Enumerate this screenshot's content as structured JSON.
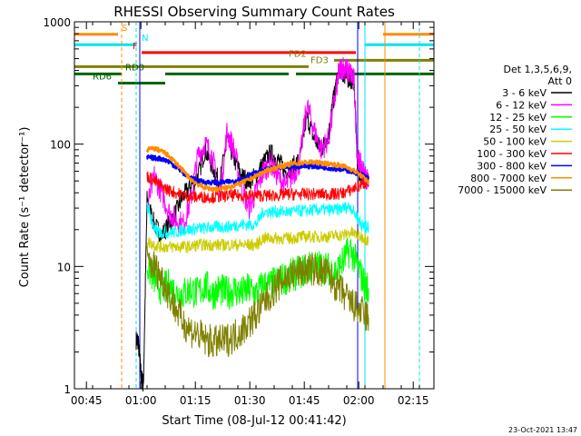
{
  "chart_data": {
    "type": "line",
    "title": "RHESSI Observing Summary Count Rates",
    "xlabel": "Start Time (08-Jul-12 00:41:42)",
    "ylabel": "Count Rate (s⁻¹ detector⁻¹)",
    "y_scale": "log",
    "ylim": [
      1,
      1000
    ],
    "x_unit": "minutes after 00:41:42",
    "xlim": [
      0,
      99
    ],
    "x_ticks": [
      {
        "label": "00:45",
        "x": 3.3
      },
      {
        "label": "01:00",
        "x": 18.3
      },
      {
        "label": "01:15",
        "x": 33.3
      },
      {
        "label": "01:30",
        "x": 48.3
      },
      {
        "label": "01:45",
        "x": 63.3
      },
      {
        "label": "02:00",
        "x": 78.3
      },
      {
        "label": "02:15",
        "x": 93.3
      }
    ],
    "y_ticks": [
      {
        "label": "1",
        "value": 1
      },
      {
        "label": "10",
        "value": 10
      },
      {
        "label": "100",
        "value": 100
      },
      {
        "label": "1000",
        "value": 1000
      }
    ],
    "legend": {
      "header": [
        "Det 1,3,5,6,9,",
        "Att 0"
      ],
      "placement": "right"
    },
    "series": [
      {
        "name": "3 - 6 keV",
        "color": "#000000",
        "x": [
          17,
          17.5,
          18.5,
          19,
          20,
          22,
          24,
          26,
          28,
          30,
          32,
          34,
          36,
          38,
          40,
          42,
          44,
          46,
          48,
          50,
          52,
          54,
          56,
          58,
          60,
          62,
          64,
          66,
          68,
          70,
          71,
          72,
          73,
          74,
          75,
          76,
          77,
          78,
          79,
          80,
          81
        ],
        "y": [
          2.5,
          2.5,
          1.2,
          1.1,
          35,
          22,
          18,
          22,
          28,
          38,
          45,
          55,
          90,
          65,
          48,
          110,
          75,
          55,
          50,
          55,
          70,
          85,
          75,
          60,
          65,
          75,
          170,
          110,
          90,
          120,
          200,
          300,
          420,
          380,
          350,
          340,
          330,
          60,
          55,
          55,
          50
        ]
      },
      {
        "name": "6 - 12 keV",
        "color": "#ff00ff",
        "x": [
          20,
          22,
          24,
          26,
          28,
          30,
          32,
          34,
          36,
          38,
          40,
          42,
          44,
          46,
          48,
          50,
          52,
          54,
          56,
          58,
          60,
          62,
          64,
          66,
          68,
          70,
          72,
          73,
          74,
          75,
          76,
          77,
          78,
          79,
          80,
          81
        ],
        "y": [
          30,
          55,
          40,
          28,
          24,
          22,
          35,
          80,
          100,
          80,
          35,
          125,
          90,
          45,
          30,
          40,
          60,
          70,
          55,
          45,
          55,
          70,
          210,
          130,
          90,
          110,
          270,
          400,
          430,
          400,
          380,
          330,
          75,
          65,
          55,
          50
        ]
      },
      {
        "name": "12 - 25 keV",
        "color": "#00ff00",
        "x": [
          20,
          22,
          24,
          26,
          28,
          30,
          32,
          34,
          36,
          38,
          40,
          42,
          44,
          46,
          48,
          50,
          52,
          54,
          56,
          58,
          60,
          62,
          64,
          66,
          68,
          70,
          72,
          74,
          76,
          78,
          80,
          81
        ],
        "y": [
          10,
          8,
          6.5,
          7,
          6,
          6,
          6.5,
          6,
          7,
          6,
          6.5,
          6,
          6.5,
          6,
          6.5,
          6,
          7,
          7,
          7.5,
          8,
          8.5,
          9,
          9.5,
          10,
          10,
          9.5,
          9,
          11,
          14,
          10,
          7,
          6.5
        ]
      },
      {
        "name": "25 - 50 keV",
        "color": "#00ffff",
        "x": [
          20,
          21,
          22,
          23,
          24,
          26,
          28,
          30,
          32,
          34,
          36,
          38,
          40,
          42,
          44,
          46,
          48,
          50,
          52,
          54,
          56,
          58,
          60,
          62,
          64,
          66,
          68,
          70,
          72,
          74,
          76,
          78,
          79,
          80,
          81
        ],
        "y": [
          32,
          25,
          20,
          19,
          19,
          19,
          19,
          20,
          20,
          20.5,
          20.5,
          21,
          21,
          21,
          21.5,
          22,
          22,
          22,
          28,
          28,
          28,
          28,
          28,
          28.5,
          28.5,
          29,
          29,
          29,
          29,
          30,
          31,
          25,
          22,
          21,
          21
        ]
      },
      {
        "name": "50 - 100 keV",
        "color": "#cccc00",
        "x": [
          20,
          22,
          24,
          26,
          28,
          30,
          32,
          34,
          36,
          38,
          40,
          42,
          44,
          46,
          48,
          50,
          52,
          54,
          56,
          58,
          60,
          62,
          64,
          66,
          68,
          70,
          72,
          74,
          76,
          78,
          80,
          81
        ],
        "y": [
          16,
          15,
          14.5,
          14.5,
          14.5,
          14.5,
          14.5,
          15,
          15,
          15,
          15,
          15,
          15,
          15,
          15,
          15,
          17,
          17,
          17,
          17,
          17,
          17.5,
          17.5,
          17.5,
          17.5,
          17.5,
          18,
          18,
          19,
          18,
          17,
          16
        ]
      },
      {
        "name": "100 - 300 keV",
        "color": "#ff0000",
        "x": [
          20,
          22,
          24,
          26,
          28,
          30,
          32,
          34,
          36,
          38,
          40,
          42,
          44,
          46,
          48,
          50,
          52,
          54,
          56,
          58,
          60,
          62,
          64,
          66,
          68,
          70,
          72,
          74,
          76,
          78,
          80,
          81
        ],
        "y": [
          55,
          50,
          45,
          42,
          40,
          38,
          37,
          37,
          37,
          37,
          37,
          38,
          38,
          38,
          38,
          38,
          38,
          38,
          38,
          39,
          39,
          39,
          39,
          39,
          39,
          39,
          39,
          40,
          42,
          45,
          48,
          50
        ]
      },
      {
        "name": "300 - 800 keV",
        "color": "#0000ff",
        "x": [
          20,
          22,
          24,
          26,
          28,
          30,
          32,
          34,
          36,
          38,
          40,
          42,
          44,
          46,
          48,
          50,
          52,
          54,
          56,
          58,
          60,
          62,
          64,
          66,
          68,
          70,
          72,
          74,
          76,
          78,
          80,
          81
        ],
        "y": [
          78,
          77,
          76,
          72,
          65,
          58,
          53,
          50,
          49,
          48.5,
          48.5,
          49,
          50,
          52,
          55,
          58,
          61,
          63,
          64,
          65,
          66,
          66,
          66,
          66,
          65,
          64,
          63,
          62,
          60,
          58,
          55,
          52
        ]
      },
      {
        "name": "800 - 7000 keV",
        "color": "#ff8c00",
        "x": [
          20,
          22,
          24,
          26,
          28,
          30,
          32,
          34,
          36,
          38,
          40,
          42,
          44,
          46,
          48,
          50,
          52,
          54,
          56,
          58,
          60,
          62,
          64,
          66,
          68,
          70,
          72,
          74,
          76,
          78,
          80,
          81
        ],
        "y": [
          90,
          92,
          88,
          80,
          70,
          60,
          52,
          47,
          44,
          43,
          43,
          44,
          46,
          48,
          51,
          55,
          59,
          62,
          65,
          67,
          69,
          70,
          71,
          71,
          70,
          69,
          68,
          66,
          63,
          58,
          52,
          49
        ]
      },
      {
        "name": "7000 - 15000 keV",
        "color": "#808000",
        "x": [
          20,
          22,
          24,
          26,
          28,
          30,
          32,
          34,
          36,
          38,
          40,
          42,
          44,
          46,
          48,
          50,
          52,
          54,
          56,
          58,
          60,
          62,
          64,
          66,
          68,
          70,
          72,
          74,
          76,
          78,
          80,
          81
        ],
        "y": [
          11,
          10,
          8,
          6,
          4.5,
          3.5,
          3,
          2.8,
          2.5,
          2.4,
          2.4,
          2.5,
          2.7,
          3,
          3.5,
          4,
          5,
          6,
          7,
          8,
          8.5,
          9,
          9.5,
          9.5,
          9,
          8.5,
          7,
          6,
          5,
          4.5,
          4,
          3.8
        ]
      }
    ],
    "flag_bars": [
      {
        "label": "S",
        "color": "#ff8c00",
        "y": 790,
        "segments": [
          [
            0,
            12
          ],
          [
            85,
            99
          ]
        ],
        "label_x": 13
      },
      {
        "label": "N",
        "color": "#00e5ee",
        "y": 650,
        "segments": [
          [
            0,
            17
          ],
          [
            80,
            99
          ]
        ],
        "label_x": 18.5
      },
      {
        "label": "F",
        "color": "#ff0000",
        "y": 560,
        "segments": [
          [
            18.5,
            77.5
          ]
        ],
        "label_x": 16
      },
      {
        "label": "FD2",
        "color": "#808000",
        "y": 485,
        "segments": [
          [
            71.5,
            99
          ]
        ],
        "label_x": 59
      },
      {
        "label": "FD3",
        "color": "#808000",
        "y": 430,
        "segments": [
          [
            0,
            64.5
          ]
        ],
        "label_x": 65
      },
      {
        "label": "RD0",
        "color": "#006400",
        "y": 375,
        "segments": [
          [
            0,
            13
          ],
          [
            25,
            59
          ],
          [
            61,
            99
          ]
        ],
        "label_x": 14
      },
      {
        "label": "RD6",
        "color": "#006400",
        "y": 315,
        "segments": [
          [
            12,
            25
          ]
        ],
        "label_x": 5
      }
    ],
    "markers": [
      {
        "x": 13,
        "color": "#ff8c00",
        "style": "dashed"
      },
      {
        "x": 17,
        "color": "#00e5ee",
        "style": "dashed"
      },
      {
        "x": 18,
        "color": "#0000ff",
        "style": "solid"
      },
      {
        "x": 78,
        "color": "#0000ff",
        "style": "solid"
      },
      {
        "x": 80,
        "color": "#00e5ee",
        "style": "solid"
      },
      {
        "x": 85.5,
        "color": "#ff8c00",
        "style": "solid"
      },
      {
        "x": 95,
        "color": "#00e5ee",
        "style": "dashed"
      }
    ],
    "grid": false
  },
  "footer": {
    "timestamp": "23-Oct-2021 13:47"
  }
}
